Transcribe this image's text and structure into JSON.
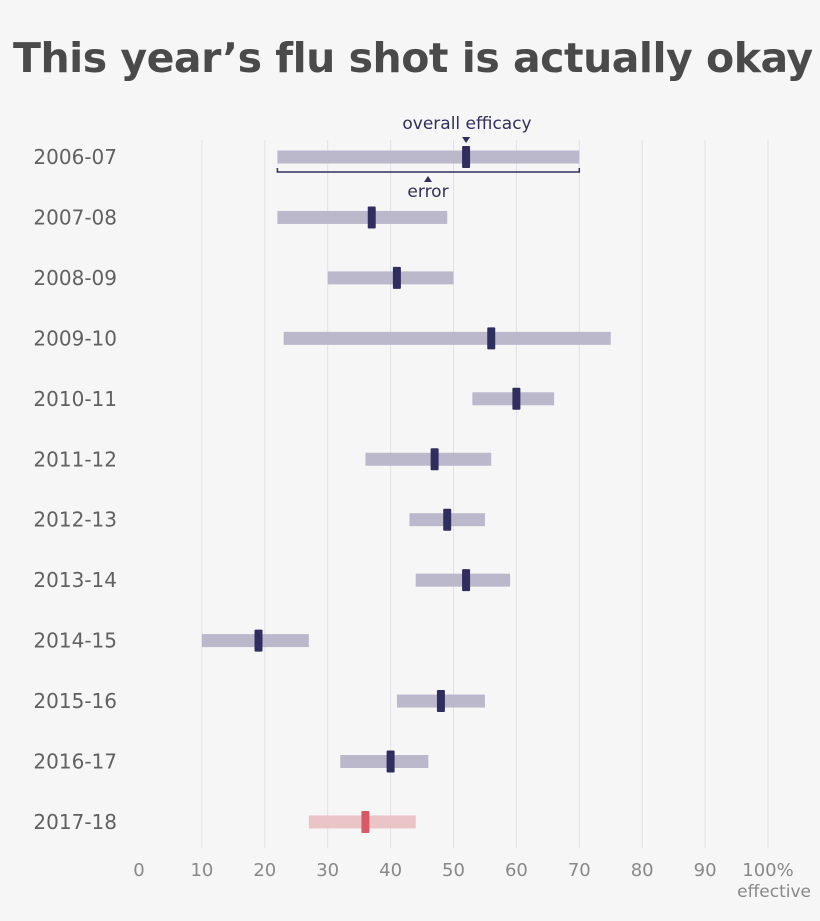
{
  "title": "This year’s flu shot is actually okay",
  "colors": {
    "background": "#f6f6f7",
    "range": "#bbb8cb",
    "point": "#302e5e",
    "highlight_range": "#ebc4c8",
    "highlight_point": "#d95a67"
  },
  "chart_data": {
    "type": "range-dot",
    "title": "This year’s flu shot is actually okay",
    "categories": [
      "2006-07",
      "2007-08",
      "2008-09",
      "2009-10",
      "2010-11",
      "2011-12",
      "2012-13",
      "2013-14",
      "2014-15",
      "2015-16",
      "2016-17",
      "2017-18"
    ],
    "efficacy": [
      52,
      37,
      41,
      56,
      60,
      47,
      49,
      52,
      19,
      48,
      40,
      36
    ],
    "lower": [
      22,
      22,
      30,
      23,
      53,
      36,
      43,
      44,
      10,
      41,
      32,
      27
    ],
    "upper": [
      70,
      49,
      50,
      75,
      66,
      56,
      55,
      59,
      27,
      55,
      46,
      44
    ],
    "highlight": "2017-18",
    "xlim": [
      0,
      100
    ],
    "xticks": [
      0,
      10,
      20,
      30,
      40,
      50,
      60,
      70,
      80,
      90,
      100
    ],
    "xtick_labels": [
      "0",
      "10",
      "20",
      "30",
      "40",
      "50",
      "60",
      "70",
      "80",
      "90",
      "100%"
    ],
    "xlabel": "effective",
    "grid": true,
    "annotations": {
      "point": "overall efficacy",
      "range": "error"
    }
  }
}
